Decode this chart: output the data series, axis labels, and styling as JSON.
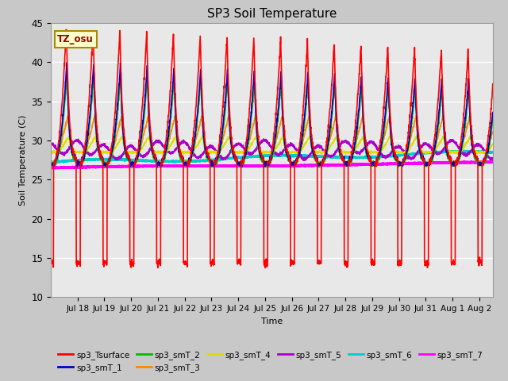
{
  "title": "SP3 Soil Temperature",
  "xlabel": "Time",
  "ylabel": "Soil Temperature (C)",
  "ylim": [
    10,
    45
  ],
  "tz_label": "TZ_osu",
  "fig_bg": "#c8c8c8",
  "plot_bg": "#e8e8e8",
  "series_colors": {
    "sp3_Tsurface": "#ff0000",
    "sp3_smT_1": "#0000cc",
    "sp3_smT_2": "#00bb00",
    "sp3_smT_3": "#ff8800",
    "sp3_smT_4": "#dddd00",
    "sp3_smT_5": "#aa00cc",
    "sp3_smT_6": "#00cccc",
    "sp3_smT_7": "#ff00ff"
  },
  "tick_dates": [
    "Jul 18",
    "Jul 19",
    "Jul 20",
    "Jul 21",
    "Jul 22",
    "Jul 23",
    "Jul 24",
    "Jul 25",
    "Jul 26",
    "Jul 27",
    "Jul 28",
    "Jul 29",
    "Jul 30",
    "Jul 31",
    "Aug 1",
    "Aug 2"
  ],
  "tick_positions": [
    1,
    2,
    3,
    4,
    5,
    6,
    7,
    8,
    9,
    10,
    11,
    12,
    13,
    14,
    15,
    16
  ],
  "n_days": 16.5
}
